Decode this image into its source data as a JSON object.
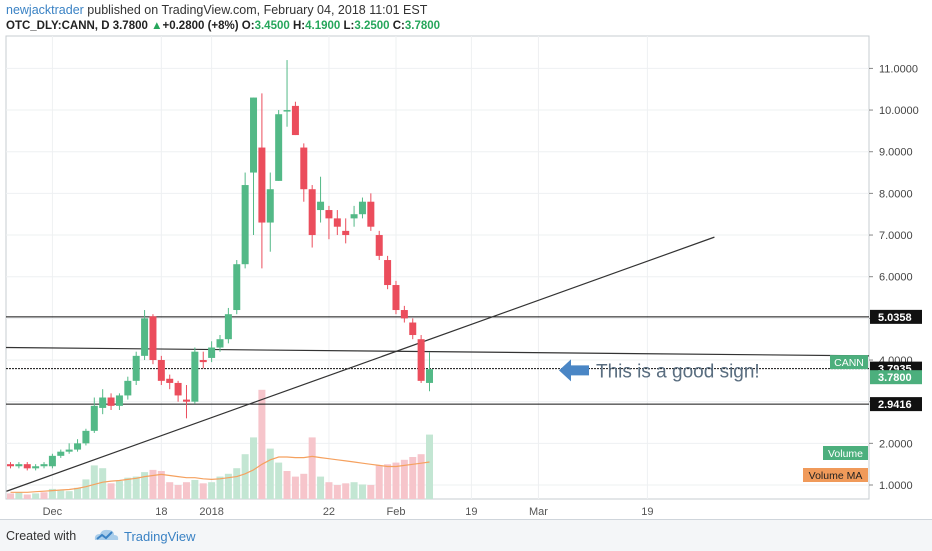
{
  "header": {
    "author": "newjacktrader",
    "published_text": " published on TradingView.com, February 04, 2018 11:01 EST",
    "symbol": "OTC_DLY:CANN, D",
    "last": "3.7800",
    "change_arrow": "▲",
    "change": "+0.2800 (+8%)",
    "o_label": "O:",
    "o_val": "3.4500",
    "h_label": "H:",
    "h_val": "4.1900",
    "l_label": "L:",
    "l_val": "3.2500",
    "c_label": "C:",
    "c_val": "3.7800"
  },
  "footer": {
    "created_with": "Created with",
    "brand": "TradingView"
  },
  "chart_data": {
    "type": "candlestick",
    "symbol": "CANN",
    "price_ticks": [
      "1.0000",
      "2.0000",
      "3.0000",
      "4.0000",
      "5.0000",
      "6.0000",
      "7.0000",
      "8.0000",
      "9.0000",
      "10.0000",
      "11.0000"
    ],
    "ylim": [
      0.6,
      11.9
    ],
    "x_ticks": [
      {
        "day": 5,
        "label": "Dec"
      },
      {
        "day": 18,
        "label": "18"
      },
      {
        "day": 24,
        "label": "2018"
      },
      {
        "day": 38,
        "label": "22"
      },
      {
        "day": 46,
        "label": "Feb"
      },
      {
        "day": 55,
        "label": "19"
      },
      {
        "day": 63,
        "label": "Mar"
      },
      {
        "day": 76,
        "label": "19"
      }
    ],
    "candles": [
      {
        "o": 1.5,
        "h": 1.55,
        "l": 1.4,
        "c": 1.45
      },
      {
        "o": 1.45,
        "h": 1.55,
        "l": 1.4,
        "c": 1.5
      },
      {
        "o": 1.5,
        "h": 1.55,
        "l": 1.35,
        "c": 1.4
      },
      {
        "o": 1.4,
        "h": 1.5,
        "l": 1.35,
        "c": 1.45
      },
      {
        "o": 1.45,
        "h": 1.55,
        "l": 1.4,
        "c": 1.5
      },
      {
        "o": 1.45,
        "h": 1.75,
        "l": 1.4,
        "c": 1.7
      },
      {
        "o": 1.7,
        "h": 1.85,
        "l": 1.65,
        "c": 1.8
      },
      {
        "o": 1.8,
        "h": 2.0,
        "l": 1.75,
        "c": 1.85
      },
      {
        "o": 1.85,
        "h": 2.1,
        "l": 1.8,
        "c": 2.0
      },
      {
        "o": 2.0,
        "h": 2.35,
        "l": 1.95,
        "c": 2.3
      },
      {
        "o": 2.3,
        "h": 3.1,
        "l": 2.25,
        "c": 2.9
      },
      {
        "o": 2.85,
        "h": 3.3,
        "l": 2.7,
        "c": 3.1
      },
      {
        "o": 3.1,
        "h": 3.2,
        "l": 2.8,
        "c": 2.9
      },
      {
        "o": 2.9,
        "h": 3.2,
        "l": 2.8,
        "c": 3.15
      },
      {
        "o": 3.15,
        "h": 3.6,
        "l": 3.05,
        "c": 3.5
      },
      {
        "o": 3.5,
        "h": 4.2,
        "l": 3.4,
        "c": 4.1
      },
      {
        "o": 4.1,
        "h": 5.2,
        "l": 4.0,
        "c": 5.0
      },
      {
        "o": 5.05,
        "h": 5.1,
        "l": 3.9,
        "c": 4.0
      },
      {
        "o": 4.0,
        "h": 4.1,
        "l": 3.4,
        "c": 3.5
      },
      {
        "o": 3.55,
        "h": 3.65,
        "l": 3.3,
        "c": 3.45
      },
      {
        "o": 3.45,
        "h": 3.5,
        "l": 3.0,
        "c": 3.15
      },
      {
        "o": 3.05,
        "h": 3.4,
        "l": 2.6,
        "c": 3.0
      },
      {
        "o": 3.0,
        "h": 4.3,
        "l": 2.95,
        "c": 4.2
      },
      {
        "o": 4.0,
        "h": 4.2,
        "l": 3.8,
        "c": 3.95
      },
      {
        "o": 4.05,
        "h": 4.45,
        "l": 3.95,
        "c": 4.3
      },
      {
        "o": 4.3,
        "h": 4.6,
        "l": 4.2,
        "c": 4.5
      },
      {
        "o": 4.5,
        "h": 5.25,
        "l": 4.4,
        "c": 5.1
      },
      {
        "o": 5.2,
        "h": 6.4,
        "l": 5.1,
        "c": 6.3
      },
      {
        "o": 6.3,
        "h": 8.5,
        "l": 6.2,
        "c": 8.2
      },
      {
        "o": 8.5,
        "h": 10.3,
        "l": 7.0,
        "c": 10.3
      },
      {
        "o": 9.1,
        "h": 10.4,
        "l": 6.2,
        "c": 7.3
      },
      {
        "o": 7.3,
        "h": 8.5,
        "l": 6.6,
        "c": 8.1
      },
      {
        "o": 8.3,
        "h": 10.0,
        "l": 8.3,
        "c": 9.9
      },
      {
        "o": 10.0,
        "h": 11.2,
        "l": 9.6,
        "c": 10.0
      },
      {
        "o": 10.1,
        "h": 10.2,
        "l": 9.4,
        "c": 9.4
      },
      {
        "o": 9.1,
        "h": 9.2,
        "l": 7.8,
        "c": 8.1
      },
      {
        "o": 8.1,
        "h": 8.2,
        "l": 6.7,
        "c": 7.0
      },
      {
        "o": 7.6,
        "h": 8.4,
        "l": 7.3,
        "c": 7.8
      },
      {
        "o": 7.6,
        "h": 7.7,
        "l": 6.9,
        "c": 7.4
      },
      {
        "o": 7.4,
        "h": 7.6,
        "l": 7.0,
        "c": 7.2
      },
      {
        "o": 7.1,
        "h": 7.4,
        "l": 6.8,
        "c": 7.0
      },
      {
        "o": 7.4,
        "h": 7.7,
        "l": 7.2,
        "c": 7.5
      },
      {
        "o": 7.5,
        "h": 7.9,
        "l": 7.4,
        "c": 7.8
      },
      {
        "o": 7.8,
        "h": 8.0,
        "l": 7.1,
        "c": 7.2
      },
      {
        "o": 7.0,
        "h": 7.1,
        "l": 6.4,
        "c": 6.5
      },
      {
        "o": 6.4,
        "h": 6.5,
        "l": 5.7,
        "c": 5.8
      },
      {
        "o": 5.8,
        "h": 5.9,
        "l": 5.1,
        "c": 5.2
      },
      {
        "o": 5.2,
        "h": 5.3,
        "l": 4.9,
        "c": 5.0
      },
      {
        "o": 4.9,
        "h": 5.0,
        "l": 4.5,
        "c": 4.6
      },
      {
        "o": 4.5,
        "h": 4.6,
        "l": 3.45,
        "c": 3.5
      },
      {
        "o": 3.45,
        "h": 4.19,
        "l": 3.25,
        "c": 3.78
      }
    ],
    "volume": [
      {
        "v": 0.1,
        "up": false
      },
      {
        "v": 0.12,
        "up": true
      },
      {
        "v": 0.08,
        "up": false
      },
      {
        "v": 0.1,
        "up": true
      },
      {
        "v": 0.12,
        "up": false
      },
      {
        "v": 0.18,
        "up": true
      },
      {
        "v": 0.15,
        "up": true
      },
      {
        "v": 0.14,
        "up": true
      },
      {
        "v": 0.2,
        "up": true
      },
      {
        "v": 0.35,
        "up": true
      },
      {
        "v": 0.6,
        "up": true
      },
      {
        "v": 0.55,
        "up": true
      },
      {
        "v": 0.28,
        "up": false
      },
      {
        "v": 0.32,
        "up": true
      },
      {
        "v": 0.38,
        "up": true
      },
      {
        "v": 0.4,
        "up": true
      },
      {
        "v": 0.48,
        "up": true
      },
      {
        "v": 0.52,
        "up": false
      },
      {
        "v": 0.5,
        "up": false
      },
      {
        "v": 0.3,
        "up": false
      },
      {
        "v": 0.25,
        "up": false
      },
      {
        "v": 0.3,
        "up": false
      },
      {
        "v": 0.34,
        "up": true
      },
      {
        "v": 0.28,
        "up": false
      },
      {
        "v": 0.3,
        "up": true
      },
      {
        "v": 0.4,
        "up": true
      },
      {
        "v": 0.45,
        "up": true
      },
      {
        "v": 0.55,
        "up": true
      },
      {
        "v": 0.8,
        "up": true
      },
      {
        "v": 1.1,
        "up": true
      },
      {
        "v": 1.95,
        "up": false
      },
      {
        "v": 0.9,
        "up": true
      },
      {
        "v": 0.65,
        "up": true
      },
      {
        "v": 0.5,
        "up": false
      },
      {
        "v": 0.4,
        "up": false
      },
      {
        "v": 0.45,
        "up": false
      },
      {
        "v": 1.1,
        "up": false
      },
      {
        "v": 0.4,
        "up": true
      },
      {
        "v": 0.3,
        "up": false
      },
      {
        "v": 0.25,
        "up": false
      },
      {
        "v": 0.28,
        "up": false
      },
      {
        "v": 0.3,
        "up": true
      },
      {
        "v": 0.26,
        "up": true
      },
      {
        "v": 0.25,
        "up": false
      },
      {
        "v": 0.6,
        "up": false
      },
      {
        "v": 0.62,
        "up": false
      },
      {
        "v": 0.65,
        "up": false
      },
      {
        "v": 0.7,
        "up": false
      },
      {
        "v": 0.75,
        "up": false
      },
      {
        "v": 0.8,
        "up": false
      },
      {
        "v": 1.15,
        "up": true
      }
    ],
    "volume_ma": [
      0.12,
      0.12,
      0.12,
      0.13,
      0.14,
      0.15,
      0.16,
      0.17,
      0.19,
      0.22,
      0.26,
      0.3,
      0.32,
      0.33,
      0.35,
      0.37,
      0.4,
      0.42,
      0.44,
      0.42,
      0.4,
      0.38,
      0.38,
      0.36,
      0.35,
      0.36,
      0.38,
      0.4,
      0.45,
      0.52,
      0.62,
      0.7,
      0.75,
      0.75,
      0.74,
      0.74,
      0.76,
      0.74,
      0.72,
      0.7,
      0.68,
      0.66,
      0.64,
      0.62,
      0.6,
      0.58,
      0.58,
      0.6,
      0.62,
      0.64,
      0.66
    ],
    "horizontal_lines": [
      5.0358,
      3.7935,
      2.9416
    ],
    "price_labels": [
      {
        "value": 5.0358,
        "text": "5.0358",
        "style": "black"
      },
      {
        "value": 3.7935,
        "text": "3.7935",
        "style": "black"
      },
      {
        "value": 3.78,
        "text": "3.7800",
        "style": "green"
      },
      {
        "value": 2.9416,
        "text": "2.9416",
        "style": "black"
      }
    ],
    "symbol_tag": "CANN",
    "volume_tag": "Volume",
    "volume_ma_tag": "Volume MA",
    "annotation": "This is a good sign!",
    "colors": {
      "up": "#53b987",
      "down": "#eb4d5c",
      "vol_up": "#c3e6d3",
      "vol_down": "#f6c5cb",
      "vol_ma": "#f5a15f",
      "tag_green": "#4caf7d",
      "tag_orange": "#f09a5a",
      "arrow": "#4a86c5"
    }
  }
}
